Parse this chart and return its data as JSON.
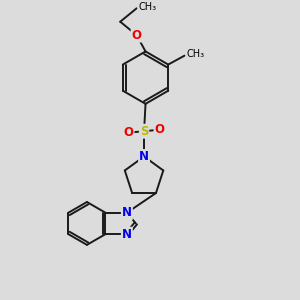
{
  "bg_color": "#dcdcdc",
  "bond_color": "#1a1a1a",
  "bond_width": 1.4,
  "atom_colors": {
    "N": "#0000ee",
    "O": "#ee0000",
    "S": "#bbbb00",
    "C": "#1a1a1a"
  },
  "font_size_atom": 8.5,
  "figsize": [
    3.0,
    3.0
  ],
  "dpi": 100,
  "xlim": [
    0,
    10
  ],
  "ylim": [
    0,
    10
  ]
}
